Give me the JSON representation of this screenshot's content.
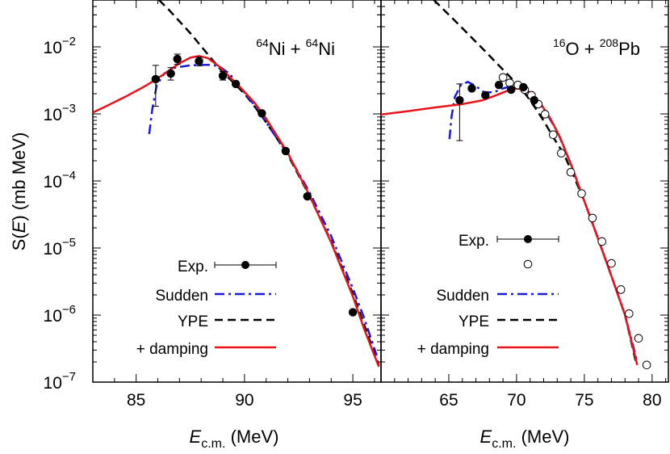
{
  "y_axis_label": {
    "main": "S(",
    "var": "E",
    "close": ")",
    "unit": " (mb MeV)"
  },
  "y_ticks": [
    {
      "base": "10",
      "exp": "−2",
      "value": 0.01
    },
    {
      "base": "10",
      "exp": "−3",
      "value": 0.001
    },
    {
      "base": "10",
      "exp": "−4",
      "value": 0.0001
    },
    {
      "base": "10",
      "exp": "−5",
      "value": 1e-05
    },
    {
      "base": "10",
      "exp": "−6",
      "value": 1e-06
    },
    {
      "base": "10",
      "exp": "−7",
      "value": 1e-07
    }
  ],
  "chart_data": [
    {
      "type": "scatter",
      "panel": "left",
      "title": {
        "sup1": "64",
        "el1": "Ni + ",
        "sup2": "64",
        "el2": "Ni"
      },
      "xlabel": {
        "main": "E",
        "sub": "c.m.",
        "unit": " (MeV)"
      },
      "ylabel": "S(E) (mb MeV)",
      "y_scale": "log",
      "xlim": [
        83.0,
        96.3
      ],
      "ylim": [
        1e-07,
        0.05
      ],
      "x_ticks": [
        85,
        90,
        95
      ],
      "legend_position": "bottom-right",
      "legend": {
        "exp": "Exp.",
        "sudden": "Sudden",
        "ype": "YPE",
        "damping": "+ damping"
      },
      "series": [
        {
          "name": "Exp.",
          "style": "filled-circle",
          "color": "#000000",
          "points": [
            {
              "x": 85.9,
              "y": 0.0033,
              "ylow": 0.0013,
              "yhigh": 0.0053
            },
            {
              "x": 86.6,
              "y": 0.004,
              "ylow": 0.0032,
              "yhigh": 0.0049
            },
            {
              "x": 86.9,
              "y": 0.0066,
              "ylow": 0.0055,
              "yhigh": 0.0078
            },
            {
              "x": 87.9,
              "y": 0.0061,
              "ylow": 0.0052,
              "yhigh": 0.0071
            },
            {
              "x": 89.0,
              "y": 0.0037,
              "ylow": 0.0032,
              "yhigh": 0.0043
            },
            {
              "x": 89.6,
              "y": 0.0028
            },
            {
              "x": 90.8,
              "y": 0.00102
            },
            {
              "x": 91.9,
              "y": 0.00028
            },
            {
              "x": 92.9,
              "y": 5.9e-05
            },
            {
              "x": 95.0,
              "y": 1.1e-06
            }
          ]
        },
        {
          "name": "Sudden",
          "style": "dash-dot",
          "color": "#1a1ad8",
          "points": [
            [
              85.6,
              0.0005
            ],
            [
              85.75,
              0.0012
            ],
            [
              85.95,
              0.0027
            ],
            [
              86.3,
              0.004
            ],
            [
              86.8,
              0.0049
            ],
            [
              87.5,
              0.0053
            ],
            [
              88.3,
              0.0054
            ],
            [
              88.8,
              0.0052
            ],
            [
              89.3,
              0.004
            ],
            [
              89.8,
              0.0025
            ],
            [
              90.5,
              0.0013
            ],
            [
              91.0,
              0.00075
            ],
            [
              92.0,
              0.00025
            ],
            [
              93.0,
              6.8e-05
            ],
            [
              94.0,
              1.5e-05
            ],
            [
              95.0,
              2.5e-06
            ],
            [
              95.5,
              9.5e-07
            ],
            [
              96.1,
              2.5e-07
            ]
          ]
        },
        {
          "name": "YPE",
          "style": "dashed",
          "color": "#000000",
          "points": [
            [
              86.05,
              0.05
            ],
            [
              86.5,
              0.036
            ],
            [
              87.0,
              0.024
            ],
            [
              87.5,
              0.016
            ],
            [
              88.0,
              0.0102
            ],
            [
              88.5,
              0.0065
            ],
            [
              89.0,
              0.0042
            ],
            [
              89.5,
              0.0029
            ],
            [
              90.0,
              0.002
            ],
            [
              90.5,
              0.00125
            ],
            [
              91.0,
              0.00075
            ],
            [
              92.0,
              0.000245
            ],
            [
              93.0,
              6e-05
            ],
            [
              94.0,
              1.25e-05
            ],
            [
              95.0,
              2.1e-06
            ],
            [
              95.5,
              7.5e-07
            ],
            [
              96.2,
              1.8e-07
            ]
          ]
        },
        {
          "name": "+ damping",
          "style": "solid",
          "color": "#e8141c",
          "points": [
            [
              83.0,
              0.00105
            ],
            [
              83.5,
              0.00125
            ],
            [
              84.0,
              0.0015
            ],
            [
              84.5,
              0.0018
            ],
            [
              85.0,
              0.0022
            ],
            [
              85.5,
              0.0027
            ],
            [
              86.0,
              0.0034
            ],
            [
              86.5,
              0.0044
            ],
            [
              87.0,
              0.0057
            ],
            [
              87.5,
              0.0069
            ],
            [
              87.9,
              0.0073
            ],
            [
              88.3,
              0.0068
            ],
            [
              88.8,
              0.0052
            ],
            [
              89.3,
              0.0036
            ],
            [
              89.8,
              0.0025
            ],
            [
              90.5,
              0.00142
            ],
            [
              91.0,
              0.00085
            ],
            [
              92.0,
              0.00026
            ],
            [
              93.0,
              6.1e-05
            ],
            [
              94.0,
              1.2e-05
            ],
            [
              95.0,
              1.9e-06
            ],
            [
              95.5,
              6.5e-07
            ],
            [
              95.9,
              3e-07
            ],
            [
              96.2,
              1.7e-07
            ]
          ]
        }
      ]
    },
    {
      "type": "scatter",
      "panel": "right",
      "title": {
        "sup1": "16",
        "el1": "O + ",
        "sup2": "208",
        "el2": "Pb"
      },
      "xlabel": {
        "main": "E",
        "sub": "c.m.",
        "unit": " (MeV)"
      },
      "ylabel": "S(E) (mb MeV)",
      "y_scale": "log",
      "xlim": [
        60.0,
        81.2
      ],
      "ylim": [
        1e-07,
        0.05
      ],
      "x_ticks": [
        65,
        70,
        75,
        80
      ],
      "legend_position": "bottom-left",
      "legend": {
        "exp": "Exp.",
        "sudden": "Sudden",
        "ype": "YPE",
        "damping": "+ damping"
      },
      "series": [
        {
          "name": "Exp.",
          "style": "filled-circle",
          "color": "#000000",
          "points": [
            {
              "x": 65.8,
              "y": 0.0016,
              "ylow": 0.0004,
              "yhigh": 0.0028
            },
            {
              "x": 66.7,
              "y": 0.0024
            },
            {
              "x": 67.7,
              "y": 0.0019
            },
            {
              "x": 68.7,
              "y": 0.0027
            },
            {
              "x": 69.6,
              "y": 0.0023
            },
            {
              "x": 70.5,
              "y": 0.0025
            },
            {
              "x": 71.3,
              "y": 0.0016
            }
          ]
        },
        {
          "name": "",
          "style": "open-circle",
          "color": "#000000",
          "points": [
            [
              69.0,
              0.0035
            ],
            [
              69.5,
              0.0029
            ],
            [
              70.1,
              0.0027
            ],
            [
              70.6,
              0.0023
            ],
            [
              71.1,
              0.0019
            ],
            [
              71.6,
              0.0014
            ],
            [
              72.1,
              0.00099
            ],
            [
              72.7,
              0.00049
            ],
            [
              73.3,
              0.00026
            ],
            [
              74.0,
              0.000135
            ],
            [
              74.8,
              6.5e-05
            ],
            [
              75.6,
              2.8e-05
            ],
            [
              76.3,
              1.25e-05
            ],
            [
              77.0,
              5.9e-06
            ],
            [
              77.7,
              2.4e-06
            ],
            [
              78.3,
              1.05e-06
            ],
            [
              79.0,
              4.5e-07
            ],
            [
              79.6,
              1.8e-07
            ]
          ]
        },
        {
          "name": "Sudden",
          "style": "dash-dot",
          "color": "#1a1ad8",
          "points": [
            [
              65.05,
              0.00042
            ],
            [
              65.2,
              0.0009
            ],
            [
              65.45,
              0.0018
            ],
            [
              65.9,
              0.0027
            ],
            [
              66.4,
              0.003
            ],
            [
              67.0,
              0.0026
            ],
            [
              67.6,
              0.0021
            ],
            [
              68.3,
              0.0021
            ],
            [
              69.0,
              0.0024
            ],
            [
              69.6,
              0.0026
            ],
            [
              70.1,
              0.0026
            ],
            [
              70.7,
              0.0023
            ],
            [
              71.3,
              0.0018
            ],
            [
              72.0,
              0.0012
            ],
            [
              73.0,
              0.00055
            ],
            [
              74.0,
              0.00018
            ],
            [
              75.0,
              5e-05
            ],
            [
              76.0,
              1.4e-05
            ],
            [
              77.0,
              3.8e-06
            ],
            [
              78.0,
              1e-06
            ],
            [
              78.9,
              2e-07
            ]
          ]
        },
        {
          "name": "YPE",
          "style": "dashed",
          "color": "#000000",
          "points": [
            [
              63.9,
              0.05
            ],
            [
              64.5,
              0.038
            ],
            [
              65.5,
              0.024
            ],
            [
              66.5,
              0.015
            ],
            [
              67.5,
              0.0094
            ],
            [
              68.5,
              0.0058
            ],
            [
              69.5,
              0.0036
            ],
            [
              70.5,
              0.0022
            ],
            [
              71.3,
              0.0013
            ],
            [
              72.0,
              0.00079
            ],
            [
              72.7,
              0.00045
            ],
            [
              73.5,
              0.00025
            ],
            [
              74.2,
              0.00012
            ],
            [
              75.0,
              5e-05
            ],
            [
              76.0,
              1.4e-05
            ],
            [
              77.0,
              3.8e-06
            ],
            [
              78.0,
              1e-06
            ],
            [
              78.8,
              2e-07
            ]
          ]
        },
        {
          "name": "+ damping",
          "style": "solid",
          "color": "#e8141c",
          "points": [
            [
              60.0,
              0.00098
            ],
            [
              62.0,
              0.0011
            ],
            [
              64.0,
              0.00125
            ],
            [
              66.0,
              0.0014
            ],
            [
              67.5,
              0.0016
            ],
            [
              68.5,
              0.0019
            ],
            [
              69.3,
              0.0022
            ],
            [
              70.0,
              0.0024
            ],
            [
              70.6,
              0.0023
            ],
            [
              71.2,
              0.0019
            ],
            [
              71.8,
              0.0014
            ],
            [
              72.5,
              0.00085
            ],
            [
              73.2,
              0.00045
            ],
            [
              74.0,
              0.00018
            ],
            [
              75.0,
              5e-05
            ],
            [
              76.0,
              1.4e-05
            ],
            [
              77.0,
              3.8e-06
            ],
            [
              78.0,
              1e-06
            ],
            [
              78.9,
              1.8e-07
            ]
          ]
        }
      ]
    }
  ]
}
